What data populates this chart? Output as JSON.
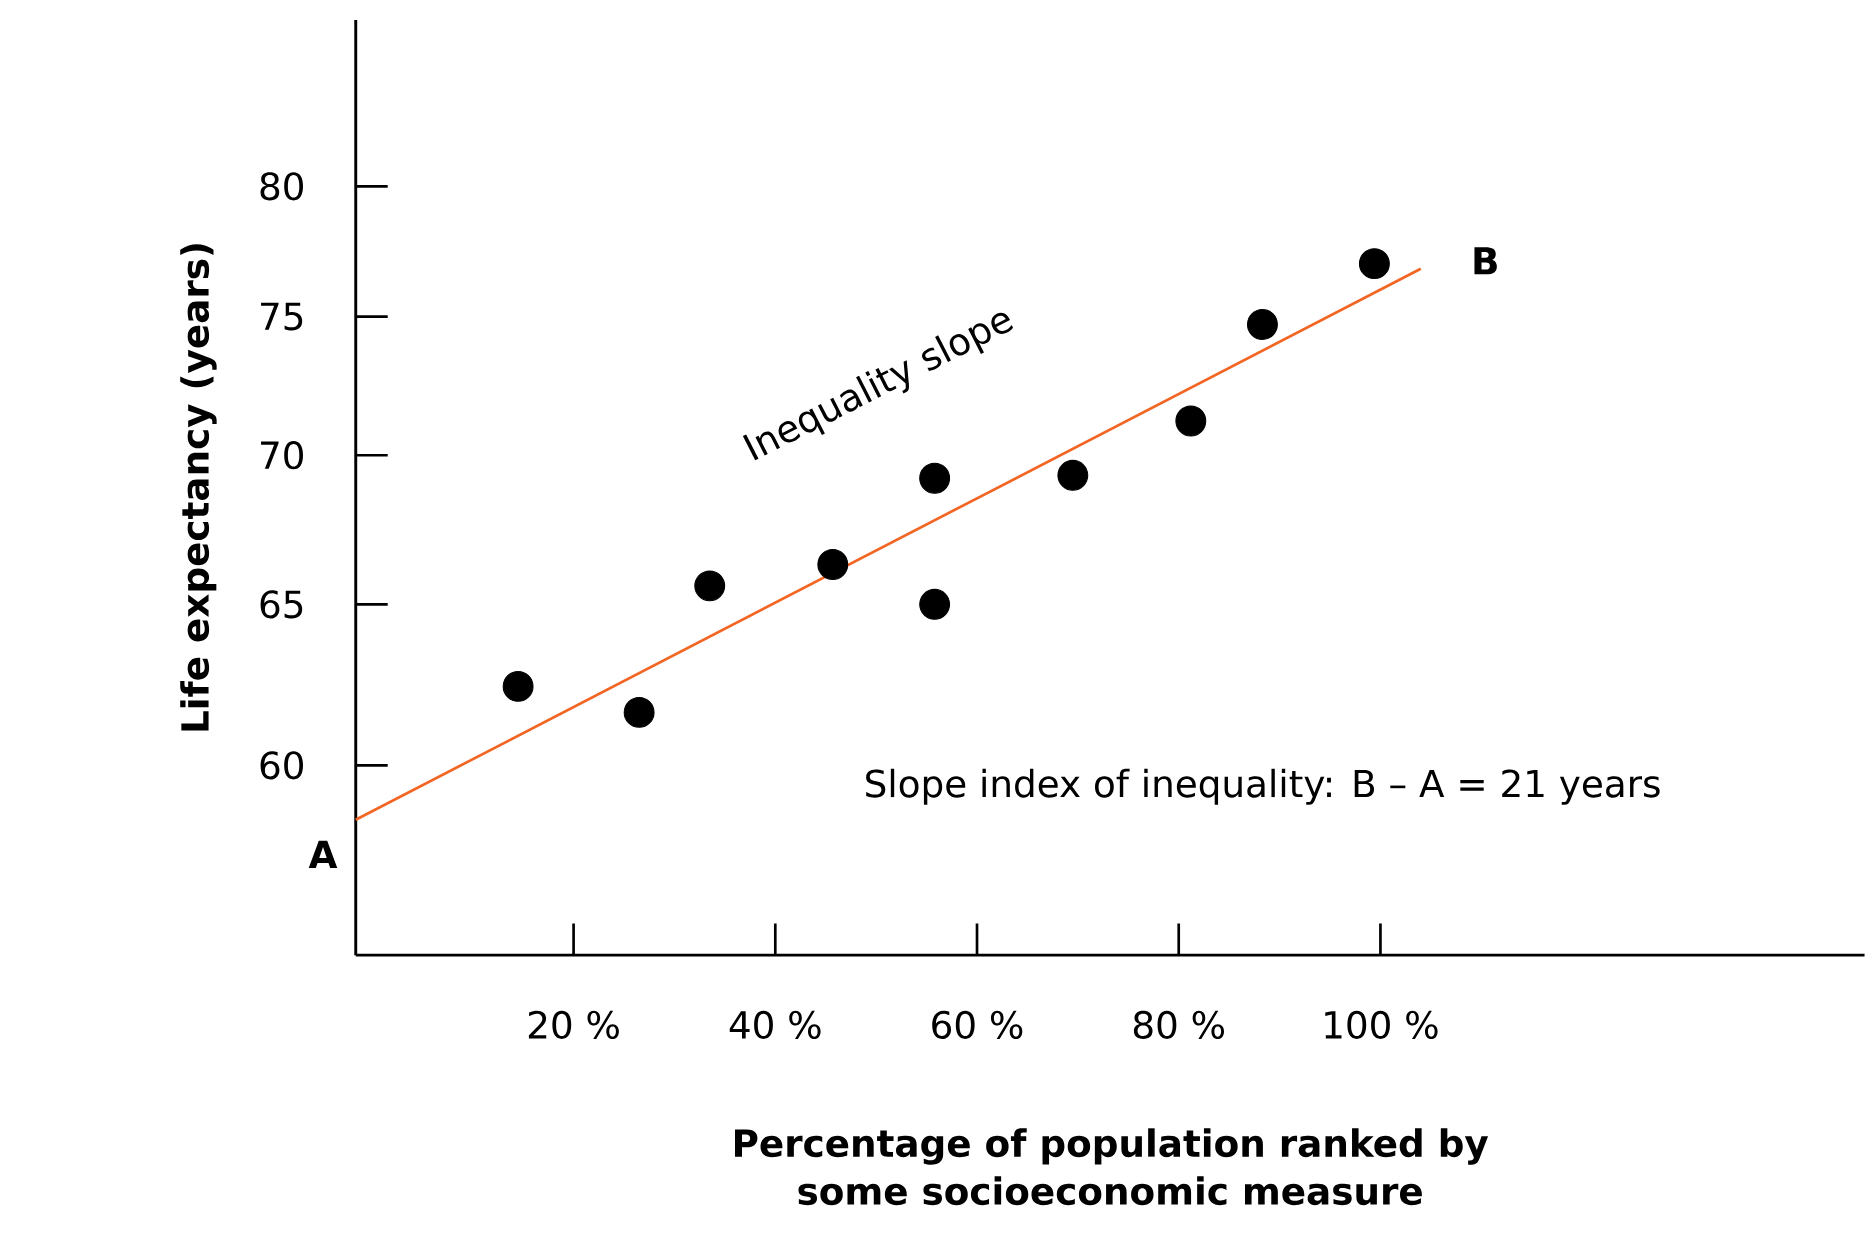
{
  "chart_data": {
    "type": "scatter",
    "xlabel": "Percentage of population ranked by\nsome socioeconomic measure",
    "ylabel": "Life expectancy (years)",
    "xlim": [
      -1.6,
      148
    ],
    "ylim": [
      54.6,
      86.9
    ],
    "log": "y",
    "xticks": [
      {
        "value": 20,
        "label": "20 %"
      },
      {
        "value": 40,
        "label": "40 %"
      },
      {
        "value": 60,
        "label": "60 %"
      },
      {
        "value": 80,
        "label": "80 %"
      },
      {
        "value": 100,
        "label": "100 %"
      }
    ],
    "yticks": [
      60,
      65,
      70,
      75,
      80
    ],
    "marker": "circle",
    "grid": false,
    "series": [
      {
        "color": "#000000",
        "x": [
          14.5,
          26.5,
          33.5,
          45.7,
          55.8,
          55.8,
          69.5,
          81.2,
          88.3,
          99.4
        ],
        "values": [
          62.4,
          61.6,
          65.6,
          66.3,
          69.2,
          65.0,
          69.3,
          71.2,
          74.7,
          77.0
        ]
      },
      {
        "type": "line",
        "color": "#f26522",
        "marker": "none",
        "x": [
          -1.6,
          104
        ],
        "values": [
          58.4,
          76.8
        ]
      }
    ],
    "annotations": [
      "Inequality slope",
      "Slope index of inequality: B – A = 21 years",
      {
        "text": "A",
        "x": -1.6,
        "y": 58.4
      },
      {
        "text": "B",
        "x": 104,
        "y": 76.8
      }
    ]
  }
}
